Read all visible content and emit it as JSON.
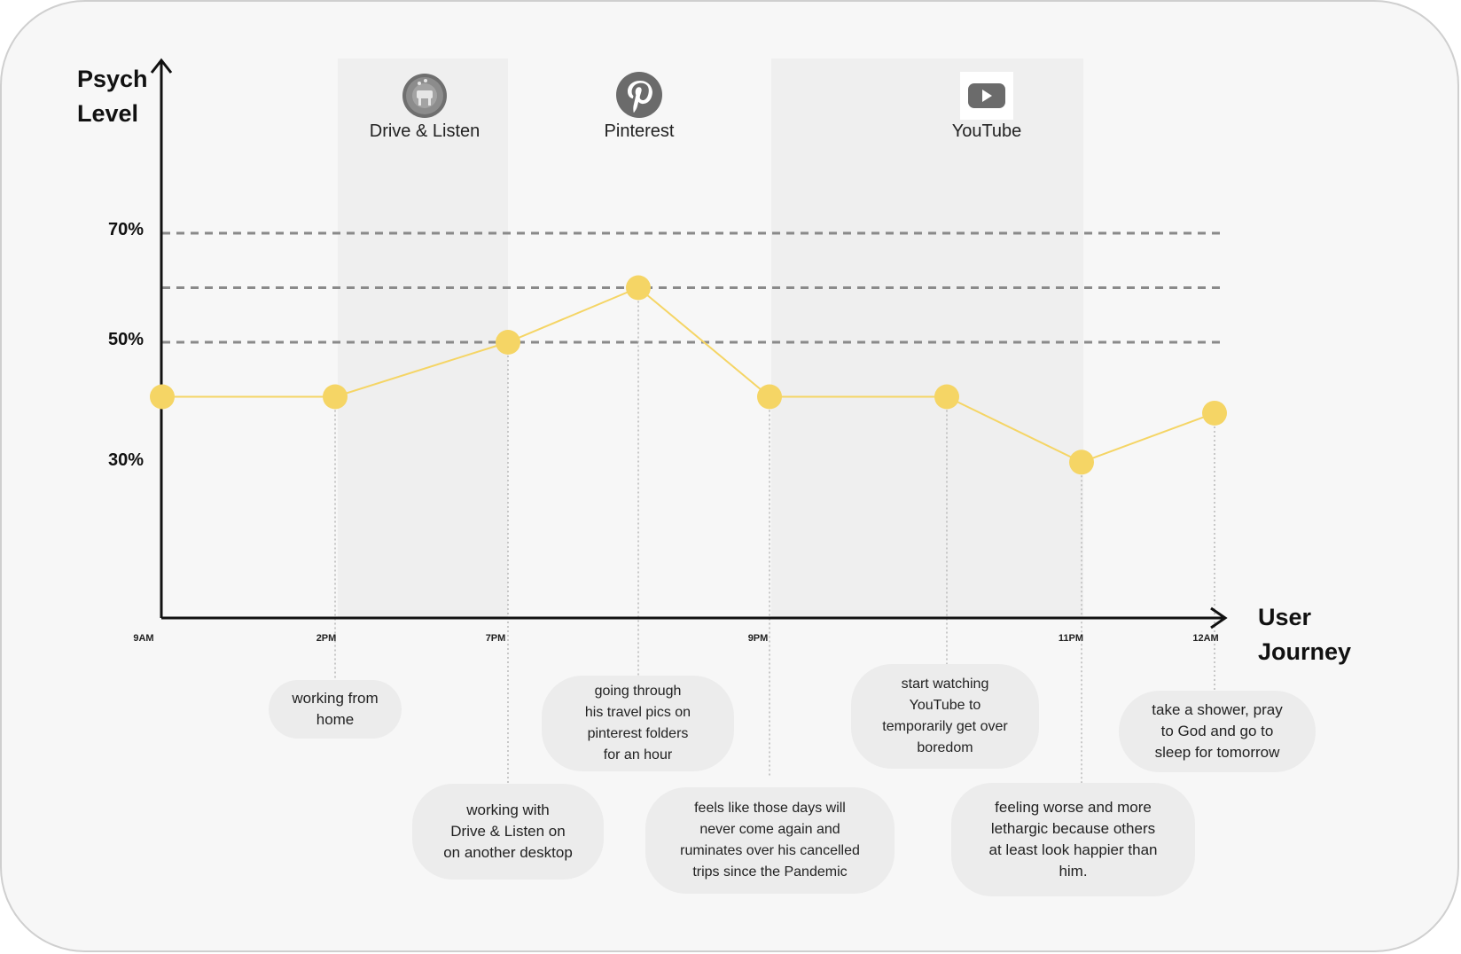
{
  "chart_data": {
    "type": "line",
    "y_axis_label_line1": "Psych",
    "y_axis_label_line2": "Level",
    "x_axis_label_line1": "User",
    "x_axis_label_line2": "Journey",
    "y_ticks": [
      "70%",
      "50%",
      "30%"
    ],
    "x_ticks": [
      "9AM",
      "2PM",
      "7PM",
      "9PM",
      "11PM",
      "12AM"
    ],
    "grid_lines_percent": [
      70,
      60,
      50
    ],
    "series": [
      {
        "color": "#f5d565",
        "points": [
          {
            "y": 40
          },
          {
            "y": 40
          },
          {
            "y": 50
          },
          {
            "y": 60
          },
          {
            "y": 40
          },
          {
            "y": 40
          },
          {
            "y": 28
          },
          {
            "y": 37
          }
        ]
      }
    ]
  },
  "apps": [
    {
      "label": "Drive & Listen",
      "icon": "drive-listen-icon"
    },
    {
      "label": "Pinterest",
      "icon": "pinterest-icon"
    },
    {
      "label": "YouTube",
      "icon": "youtube-icon"
    }
  ],
  "notes": [
    {
      "text": "working from\nhome"
    },
    {
      "text": "working with\nDrive & Listen on\non another desktop"
    },
    {
      "text": "going through\nhis travel pics on\npinterest folders\nfor an hour"
    },
    {
      "text": "feels like those days will\nnever come again and\nruminates over his cancelled\ntrips since the Pandemic"
    },
    {
      "text": "start watching\nYouTube to\ntemporarily get over\nboredom"
    },
    {
      "text": "feeling worse and more\nlethargic because others\nat least look happier than\nhim."
    },
    {
      "text": "take a shower, pray\nto God and go to\nsleep for tomorrow"
    }
  ],
  "colors": {
    "line": "#f5d565",
    "marker": "#f5d565",
    "grid": "#8a8a8a",
    "band": "#efefef",
    "card_bg": "#f7f7f7"
  }
}
